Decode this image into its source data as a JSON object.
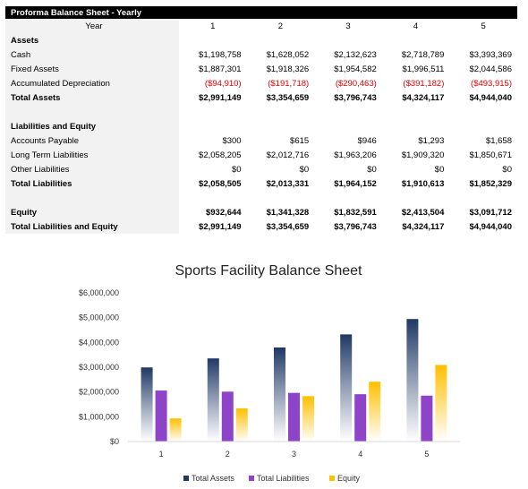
{
  "table": {
    "title": "Proforma Balance Sheet - Yearly",
    "year_label": "Year",
    "years": [
      "1",
      "2",
      "3",
      "4",
      "5"
    ],
    "rows": [
      {
        "label": "Assets",
        "type": "section",
        "values": []
      },
      {
        "label": "Cash",
        "type": "normal",
        "values": [
          "$1,198,758",
          "$1,628,052",
          "$2,132,623",
          "$2,718,789",
          "$3,393,369"
        ]
      },
      {
        "label": "Fixed Assets",
        "type": "normal",
        "values": [
          "$1,887,301",
          "$1,918,326",
          "$1,954,582",
          "$1,996,511",
          "$2,044,586"
        ]
      },
      {
        "label": "Accumulated Depreciation",
        "type": "negative",
        "values": [
          "($94,910)",
          "($191,718)",
          "($290,463)",
          "($391,182)",
          "($493,915)"
        ]
      },
      {
        "label": "Total Assets",
        "type": "total",
        "values": [
          "$2,991,149",
          "$3,354,659",
          "$3,796,743",
          "$4,324,117",
          "$4,944,040"
        ]
      },
      {
        "label": "",
        "type": "blank",
        "values": []
      },
      {
        "label": "Liabilities and Equity",
        "type": "section",
        "values": []
      },
      {
        "label": "Accounts Payable",
        "type": "normal",
        "values": [
          "$300",
          "$615",
          "$946",
          "$1,293",
          "$1,658"
        ]
      },
      {
        "label": "Long Term Liabilities",
        "type": "normal",
        "values": [
          "$2,058,205",
          "$2,012,716",
          "$1,963,206",
          "$1,909,320",
          "$1,850,671"
        ]
      },
      {
        "label": "Other Liabilities",
        "type": "normal",
        "values": [
          "$0",
          "$0",
          "$0",
          "$0",
          "$0"
        ]
      },
      {
        "label": "Total Liabilities",
        "type": "total",
        "values": [
          "$2,058,505",
          "$2,013,331",
          "$1,964,152",
          "$1,910,613",
          "$1,852,329"
        ]
      },
      {
        "label": "",
        "type": "blank",
        "values": []
      },
      {
        "label": "Equity",
        "type": "total",
        "values": [
          "$932,644",
          "$1,341,328",
          "$1,832,591",
          "$2,413,504",
          "$3,091,712"
        ]
      },
      {
        "label": "Total Liabilities and Equity",
        "type": "total",
        "values": [
          "$2,991,149",
          "$3,354,659",
          "$3,796,743",
          "$4,324,117",
          "$4,944,040"
        ]
      }
    ]
  },
  "chart_data": {
    "type": "bar",
    "title": "Sports Facility Balance Sheet",
    "categories": [
      "1",
      "2",
      "3",
      "4",
      "5"
    ],
    "series": [
      {
        "name": "Total Assets",
        "values": [
          2991149,
          3354659,
          3796743,
          4324117,
          4944040
        ],
        "color": "#1f3864"
      },
      {
        "name": "Total Liabilities",
        "values": [
          2058505,
          2013331,
          1964152,
          1910613,
          1852329
        ],
        "color": "#8e44c9"
      },
      {
        "name": "Equity",
        "values": [
          932644,
          1341328,
          1832591,
          2413504,
          3091712
        ],
        "color": "#ffc000"
      }
    ],
    "ylim": [
      0,
      6000000
    ],
    "yticks": [
      0,
      1000000,
      2000000,
      3000000,
      4000000,
      5000000,
      6000000
    ],
    "ytick_labels": [
      "$0",
      "$1,000,000",
      "$2,000,000",
      "$3,000,000",
      "$4,000,000",
      "$5,000,000",
      "$6,000,000"
    ],
    "grid": false,
    "legend": "bottom"
  }
}
